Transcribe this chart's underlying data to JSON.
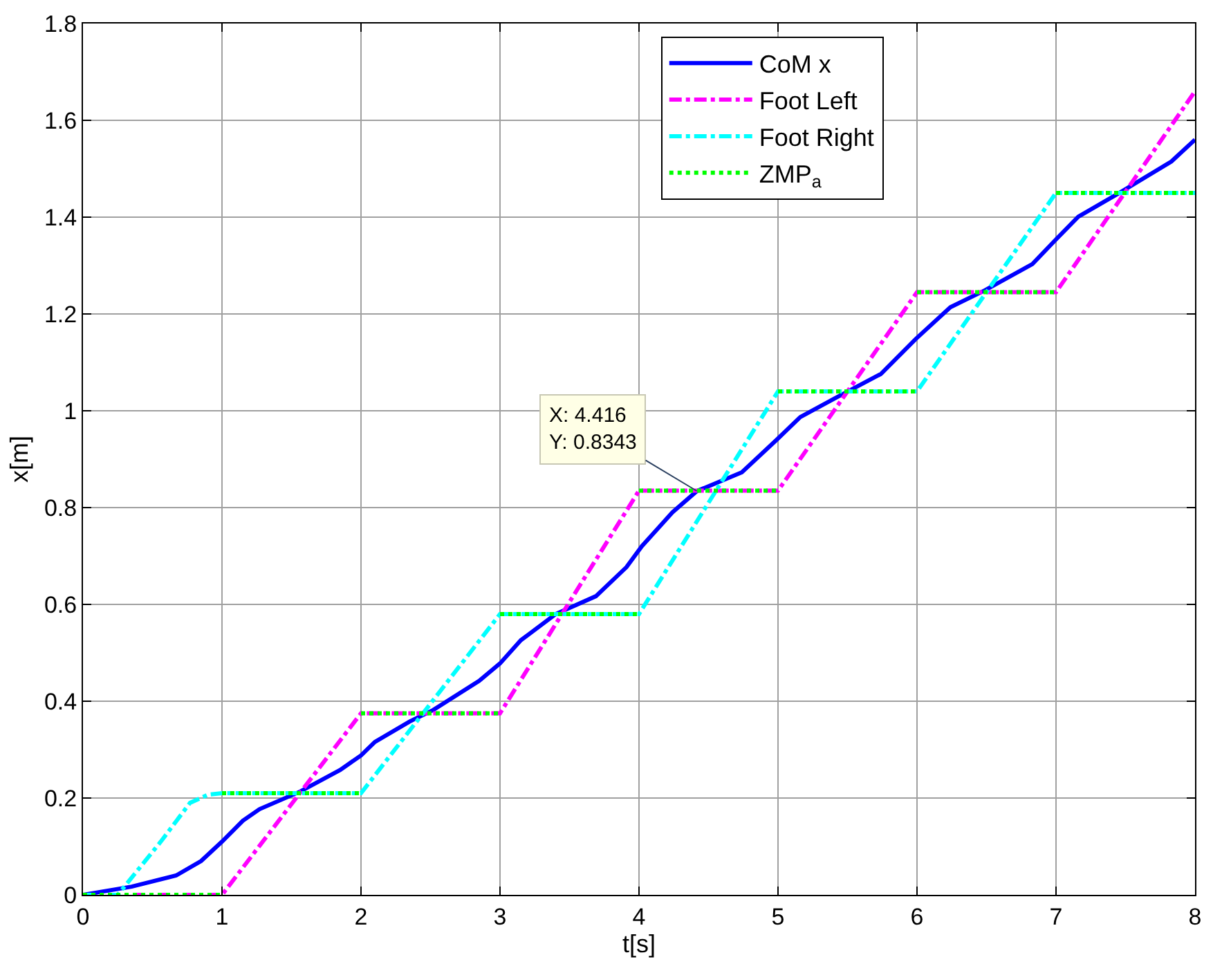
{
  "chart_data": {
    "type": "line",
    "xlabel": "t[s]",
    "ylabel": "x[m]",
    "xlim": [
      0,
      8
    ],
    "xticks": [
      0,
      1,
      2,
      3,
      4,
      5,
      6,
      7,
      8
    ],
    "ylim": [
      0,
      1.8
    ],
    "yticks": [
      0,
      0.2,
      0.4,
      0.6,
      0.8,
      1,
      1.2,
      1.4,
      1.6,
      1.8
    ],
    "grid": true,
    "legend": "top right",
    "series": [
      {
        "name": "CoM x",
        "color": "#0000ff",
        "line_style": "solid",
        "x": [
          0,
          0.35,
          0.67,
          0.85,
          1,
          1.15,
          1.27,
          1.56,
          1.85,
          2,
          2.1,
          2.35,
          2.52,
          2.85,
          3,
          3.15,
          3.4,
          3.69,
          3.91,
          4.02,
          4.24,
          4.416,
          4.74,
          4.99,
          5.16,
          5.41,
          5.74,
          5.99,
          6.24,
          6.49,
          6.83,
          6.99,
          7.16,
          7.45,
          7.83,
          8
        ],
        "values": [
          0,
          0.017,
          0.04,
          0.07,
          0.11,
          0.153,
          0.177,
          0.213,
          0.258,
          0.288,
          0.316,
          0.358,
          0.382,
          0.442,
          0.478,
          0.526,
          0.58,
          0.617,
          0.677,
          0.72,
          0.79,
          0.834,
          0.873,
          0.94,
          0.987,
          1.026,
          1.076,
          1.148,
          1.214,
          1.249,
          1.303,
          1.351,
          1.401,
          1.449,
          1.515,
          1.56
        ]
      },
      {
        "name": "Foot Left",
        "color": "#ff00ff",
        "line_style": "dashdot",
        "x": [
          0,
          1,
          2,
          3,
          4,
          5,
          6,
          7,
          8
        ],
        "values": [
          0,
          0,
          0.375,
          0.375,
          0.835,
          0.835,
          1.245,
          1.245,
          1.66
        ]
      },
      {
        "name": "Foot Right",
        "color": "#00ffff",
        "line_style": "dashdot",
        "x": [
          0,
          0.25,
          0.56,
          0.77,
          0.9,
          1,
          2,
          3,
          4,
          5,
          6,
          7,
          8
        ],
        "values": [
          0,
          0,
          0.11,
          0.19,
          0.207,
          0.21,
          0.21,
          0.58,
          0.58,
          1.04,
          1.04,
          1.45,
          1.45
        ]
      },
      {
        "name": "ZMP$_{a}$",
        "color": "#00ff00",
        "line_style": "dotted",
        "x": [
          0,
          1
        ],
        "values": [
          0,
          0
        ]
      },
      {
        "color": "#00ff00",
        "line_style": "dotted",
        "x": [
          1,
          2
        ],
        "values": [
          0.21,
          0.21
        ]
      },
      {
        "color": "#00ff00",
        "line_style": "dotted",
        "x": [
          2,
          3
        ],
        "values": [
          0.375,
          0.375
        ]
      },
      {
        "color": "#00ff00",
        "line_style": "dotted",
        "x": [
          3,
          4
        ],
        "values": [
          0.58,
          0.58
        ]
      },
      {
        "color": "#00ff00",
        "line_style": "dotted",
        "x": [
          4,
          5
        ],
        "values": [
          0.835,
          0.835
        ]
      },
      {
        "color": "#00ff00",
        "line_style": "dotted",
        "x": [
          5,
          6
        ],
        "values": [
          1.04,
          1.04
        ]
      },
      {
        "color": "#00ff00",
        "line_style": "dotted",
        "x": [
          6,
          7
        ],
        "values": [
          1.245,
          1.245
        ]
      },
      {
        "color": "#00ff00",
        "line_style": "dotted",
        "x": [
          7,
          8
        ],
        "values": [
          1.45,
          1.45
        ]
      }
    ],
    "annotations": [
      {
        "text": "X: 4.416\nY: 0.8343",
        "x": 4.416,
        "y": 0.8343
      }
    ]
  }
}
